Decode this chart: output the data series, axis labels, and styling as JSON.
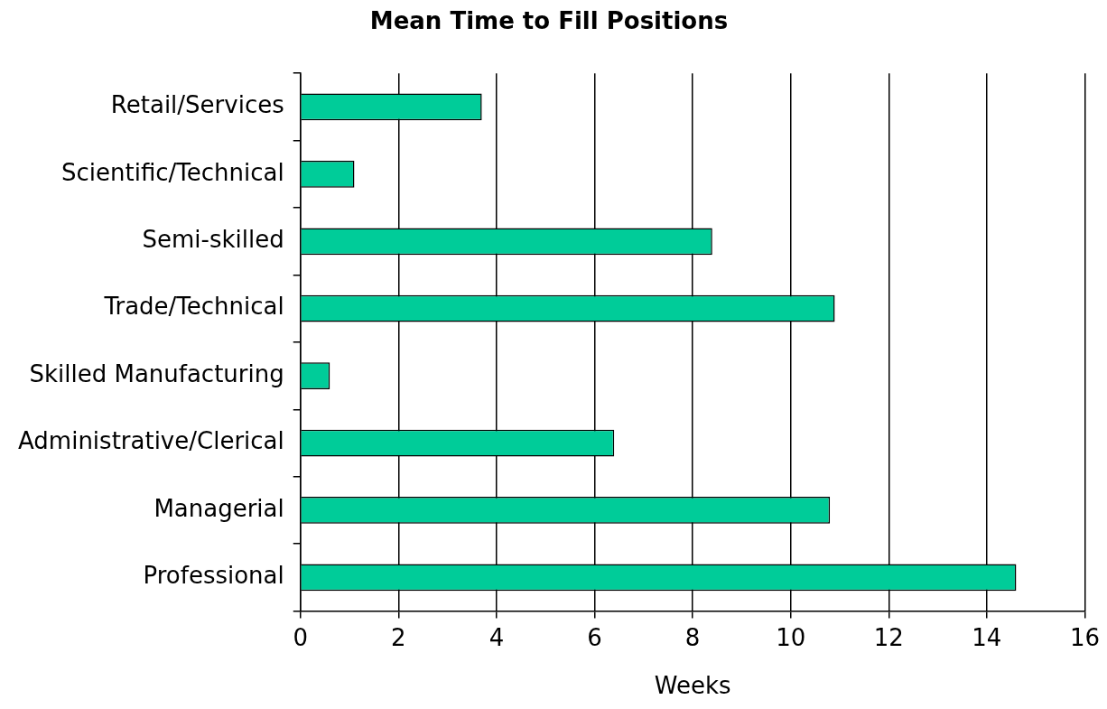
{
  "chart_data": {
    "type": "bar",
    "orientation": "horizontal",
    "title": "Mean Time to Fill Positions",
    "xlabel": "Weeks",
    "categories": [
      "Retail/Services",
      "Scientific/Technical",
      "Semi-skilled",
      "Trade/Technical",
      "Skilled Manufacturing",
      "Administrative/Clerical",
      "Managerial",
      "Professional"
    ],
    "values": [
      3.7,
      1.1,
      8.4,
      10.9,
      0.6,
      6.4,
      10.8,
      14.6
    ],
    "color": "#00cc99",
    "xlim": [
      0,
      16
    ],
    "xticks": [
      0,
      2,
      4,
      6,
      8,
      10,
      12,
      14,
      16
    ],
    "grid": "x",
    "legend": false
  }
}
